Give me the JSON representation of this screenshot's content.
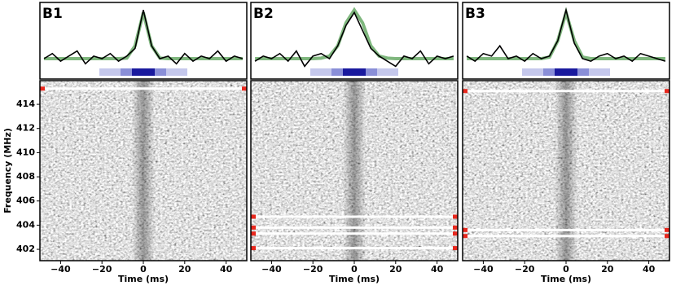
{
  "chart_data": [
    {
      "type": "line",
      "label": "B1",
      "xlabel": "Time (ms)",
      "ylabel": "Frequency (MHz)",
      "x": [
        -48,
        -44,
        -40,
        -36,
        -32,
        -28,
        -24,
        -20,
        -16,
        -12,
        -8,
        -4,
        0,
        4,
        8,
        12,
        16,
        20,
        24,
        28,
        32,
        36,
        40,
        44,
        48
      ],
      "values": [
        0.05,
        0.15,
        0.0,
        0.1,
        0.2,
        -0.05,
        0.1,
        0.05,
        0.15,
        0.0,
        0.1,
        0.25,
        1.0,
        0.3,
        0.05,
        0.1,
        -0.05,
        0.15,
        0.0,
        0.1,
        0.05,
        0.2,
        0.0,
        0.1,
        0.05
      ],
      "fit_values": [
        0.05,
        0.05,
        0.05,
        0.05,
        0.05,
        0.05,
        0.05,
        0.05,
        0.05,
        0.05,
        0.06,
        0.3,
        0.95,
        0.3,
        0.06,
        0.05,
        0.05,
        0.05,
        0.05,
        0.05,
        0.05,
        0.05,
        0.05,
        0.05,
        0.05
      ],
      "color": "#000000",
      "fit_color": "#7fb77e",
      "flagged_channels": [
        415.3
      ],
      "xlim": [
        -50,
        50
      ],
      "ylim": [
        401.06,
        415.96
      ],
      "profile_ylim": [
        -0.3,
        1.1
      ],
      "xticks": [
        {
          "value": -40,
          "label": "−40"
        },
        {
          "value": -20,
          "label": "−20"
        },
        0,
        20,
        40
      ],
      "yticks": [
        402,
        404,
        406,
        408,
        410,
        412,
        414
      ]
    },
    {
      "type": "line",
      "label": "B2",
      "xlabel": "Time (ms)",
      "x": [
        -48,
        -44,
        -40,
        -36,
        -32,
        -28,
        -24,
        -20,
        -16,
        -12,
        -8,
        -4,
        0,
        4,
        8,
        12,
        16,
        20,
        24,
        28,
        32,
        36,
        40,
        44,
        48
      ],
      "values": [
        0.0,
        0.1,
        0.05,
        0.15,
        0.0,
        0.2,
        -0.1,
        0.1,
        0.15,
        0.05,
        0.3,
        0.7,
        0.95,
        0.6,
        0.25,
        0.1,
        0.0,
        -0.1,
        0.1,
        0.05,
        0.2,
        -0.05,
        0.1,
        0.05,
        0.1
      ],
      "fit_values": [
        0.05,
        0.05,
        0.05,
        0.05,
        0.05,
        0.05,
        0.05,
        0.05,
        0.06,
        0.1,
        0.3,
        0.75,
        1.0,
        0.75,
        0.3,
        0.1,
        0.06,
        0.05,
        0.05,
        0.05,
        0.05,
        0.05,
        0.05,
        0.05,
        0.05
      ],
      "color": "#000000",
      "fit_color": "#7fb77e",
      "flagged_channels": [
        404.7,
        403.8,
        403.3,
        402.1
      ],
      "xlim": [
        -50,
        50
      ],
      "ylim": [
        401.06,
        415.96
      ],
      "profile_ylim": [
        -0.3,
        1.1
      ],
      "xticks": [
        {
          "value": -40,
          "label": "−40"
        },
        {
          "value": -20,
          "label": "−20"
        },
        0,
        20,
        40
      ]
    },
    {
      "type": "line",
      "label": "B3",
      "xlabel": "Time (ms)",
      "x": [
        -48,
        -44,
        -40,
        -36,
        -32,
        -28,
        -24,
        -20,
        -16,
        -12,
        -8,
        -4,
        0,
        4,
        8,
        12,
        16,
        20,
        24,
        28,
        32,
        36,
        40,
        44,
        48
      ],
      "values": [
        0.1,
        0.0,
        0.15,
        0.1,
        0.3,
        0.05,
        0.1,
        0.0,
        0.15,
        0.05,
        0.1,
        0.4,
        1.0,
        0.35,
        0.05,
        0.0,
        0.1,
        0.15,
        0.05,
        0.1,
        0.0,
        0.15,
        0.1,
        0.05,
        0.0
      ],
      "fit_values": [
        0.05,
        0.05,
        0.05,
        0.05,
        0.05,
        0.05,
        0.05,
        0.05,
        0.05,
        0.05,
        0.08,
        0.4,
        0.95,
        0.4,
        0.08,
        0.05,
        0.05,
        0.05,
        0.05,
        0.05,
        0.05,
        0.05,
        0.05,
        0.05,
        0.05
      ],
      "color": "#000000",
      "fit_color": "#7fb77e",
      "flagged_channels": [
        415.1,
        403.6,
        403.1
      ],
      "xlim": [
        -50,
        50
      ],
      "ylim": [
        401.06,
        415.96
      ],
      "profile_ylim": [
        -0.3,
        1.1
      ],
      "xticks": [
        {
          "value": -40,
          "label": "−40"
        },
        {
          "value": -20,
          "label": "−20"
        },
        0,
        20,
        40
      ]
    }
  ]
}
